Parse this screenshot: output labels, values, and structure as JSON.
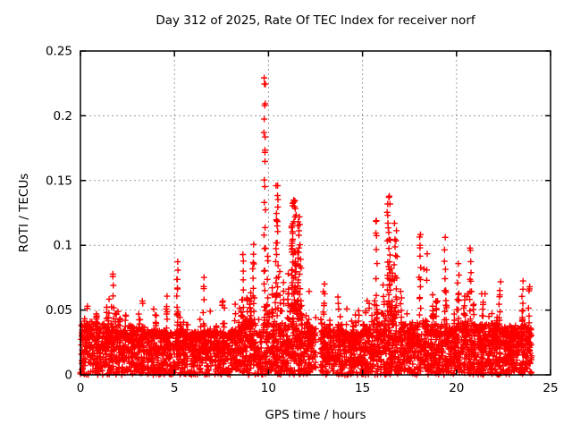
{
  "figure": {
    "background": "#ffffff",
    "border_color": "#000000",
    "grid_color": "#9c9c9c",
    "text_color": "#000000"
  },
  "chart_data": {
    "type": "scatter",
    "title": "Day 312 of 2025, Rate Of TEC Index for receiver norf",
    "xlabel": "GPS time / hours",
    "ylabel": "ROTI / TECUs",
    "xlim": [
      0,
      25
    ],
    "ylim": [
      0,
      0.25
    ],
    "xticks": [
      0,
      5,
      10,
      15,
      20,
      25
    ],
    "yticks": [
      0,
      0.05,
      0.1,
      0.15,
      0.2,
      0.25
    ],
    "xtick_labels": [
      "0",
      "5",
      "10",
      "15",
      "20",
      "25"
    ],
    "ytick_labels": [
      "0",
      "0.05",
      "0.1",
      "0.15",
      "0.2",
      "0.25"
    ],
    "grid": true,
    "grid_dash": [
      2,
      3
    ],
    "legend": null,
    "marker": {
      "shape": "plus",
      "color": "#ff0000",
      "half_size": 3.5,
      "stroke_width": 1.4
    },
    "data_range_hours": [
      0,
      24
    ],
    "data_gap_hours": [
      12.52,
      12.78
    ],
    "bin_width_hours": 0.5,
    "envelope_bins": [
      {
        "x": 0.0,
        "base": 0.04,
        "max": 0.068
      },
      {
        "x": 0.5,
        "base": 0.042,
        "max": 0.073
      },
      {
        "x": 1.0,
        "base": 0.04,
        "max": 0.065
      },
      {
        "x": 1.5,
        "base": 0.038,
        "max": 0.078
      },
      {
        "x": 2.0,
        "base": 0.035,
        "max": 0.062
      },
      {
        "x": 2.5,
        "base": 0.038,
        "max": 0.066
      },
      {
        "x": 3.0,
        "base": 0.037,
        "max": 0.065
      },
      {
        "x": 3.5,
        "base": 0.034,
        "max": 0.055
      },
      {
        "x": 4.0,
        "base": 0.034,
        "max": 0.058
      },
      {
        "x": 4.5,
        "base": 0.033,
        "max": 0.066
      },
      {
        "x": 5.0,
        "base": 0.035,
        "max": 0.072
      },
      {
        "x": 5.5,
        "base": 0.033,
        "max": 0.052
      },
      {
        "x": 6.0,
        "base": 0.033,
        "max": 0.056
      },
      {
        "x": 6.5,
        "base": 0.035,
        "max": 0.075
      },
      {
        "x": 7.0,
        "base": 0.034,
        "max": 0.058
      },
      {
        "x": 7.5,
        "base": 0.033,
        "max": 0.062
      },
      {
        "x": 8.0,
        "base": 0.036,
        "max": 0.072
      },
      {
        "x": 8.5,
        "base": 0.042,
        "max": 0.085
      },
      {
        "x": 9.0,
        "base": 0.046,
        "max": 0.09
      },
      {
        "x": 9.5,
        "base": 0.05,
        "max": 0.105
      },
      {
        "x": 10.0,
        "base": 0.052,
        "max": 0.11
      },
      {
        "x": 10.5,
        "base": 0.05,
        "max": 0.105
      },
      {
        "x": 11.0,
        "base": 0.055,
        "max": 0.115
      },
      {
        "x": 11.5,
        "base": 0.052,
        "max": 0.11
      },
      {
        "x": 12.0,
        "base": 0.04,
        "max": 0.08
      },
      {
        "x": 12.5,
        "base": 0.035,
        "max": 0.055
      },
      {
        "x": 13.0,
        "base": 0.035,
        "max": 0.063
      },
      {
        "x": 13.5,
        "base": 0.037,
        "max": 0.068
      },
      {
        "x": 14.0,
        "base": 0.033,
        "max": 0.055
      },
      {
        "x": 14.5,
        "base": 0.033,
        "max": 0.06
      },
      {
        "x": 15.0,
        "base": 0.038,
        "max": 0.07
      },
      {
        "x": 15.5,
        "base": 0.045,
        "max": 0.085
      },
      {
        "x": 16.0,
        "base": 0.05,
        "max": 0.1
      },
      {
        "x": 16.5,
        "base": 0.05,
        "max": 0.1
      },
      {
        "x": 17.0,
        "base": 0.04,
        "max": 0.095
      },
      {
        "x": 17.5,
        "base": 0.04,
        "max": 0.09
      },
      {
        "x": 18.0,
        "base": 0.042,
        "max": 0.105
      },
      {
        "x": 18.5,
        "base": 0.04,
        "max": 0.09
      },
      {
        "x": 19.0,
        "base": 0.038,
        "max": 0.08
      },
      {
        "x": 19.5,
        "base": 0.037,
        "max": 0.105
      },
      {
        "x": 20.0,
        "base": 0.04,
        "max": 0.085
      },
      {
        "x": 20.5,
        "base": 0.04,
        "max": 0.095
      },
      {
        "x": 21.0,
        "base": 0.038,
        "max": 0.083
      },
      {
        "x": 21.5,
        "base": 0.04,
        "max": 0.075
      },
      {
        "x": 22.0,
        "base": 0.04,
        "max": 0.072
      },
      {
        "x": 22.5,
        "base": 0.038,
        "max": 0.066
      },
      {
        "x": 23.0,
        "base": 0.037,
        "max": 0.066
      },
      {
        "x": 23.5,
        "base": 0.04,
        "max": 0.073
      }
    ],
    "spike_events": [
      {
        "x": 9.8,
        "top": 0.23,
        "n": 20,
        "w": 0.05
      },
      {
        "x": 10.45,
        "top": 0.148,
        "n": 24,
        "w": 0.09
      },
      {
        "x": 11.35,
        "top": 0.135,
        "n": 36,
        "w": 0.13
      },
      {
        "x": 11.65,
        "top": 0.122,
        "n": 20,
        "w": 0.09
      },
      {
        "x": 16.4,
        "top": 0.136,
        "n": 22,
        "w": 0.09
      },
      {
        "x": 16.75,
        "top": 0.118,
        "n": 12,
        "w": 0.07
      },
      {
        "x": 15.75,
        "top": 0.119,
        "n": 8,
        "w": 0.04
      },
      {
        "x": 5.15,
        "top": 0.088,
        "n": 9,
        "w": 0.04
      },
      {
        "x": 18.05,
        "top": 0.105,
        "n": 10,
        "w": 0.05
      },
      {
        "x": 9.2,
        "top": 0.1,
        "n": 10,
        "w": 0.05
      },
      {
        "x": 8.65,
        "top": 0.094,
        "n": 9,
        "w": 0.04
      },
      {
        "x": 19.4,
        "top": 0.105,
        "n": 10,
        "w": 0.06
      },
      {
        "x": 20.75,
        "top": 0.095,
        "n": 9,
        "w": 0.05
      },
      {
        "x": 12.95,
        "top": 0.07,
        "n": 6,
        "w": 0.04
      },
      {
        "x": 22.3,
        "top": 0.072,
        "n": 7,
        "w": 0.05
      },
      {
        "x": 23.5,
        "top": 0.073,
        "n": 7,
        "w": 0.04
      },
      {
        "x": 1.75,
        "top": 0.078,
        "n": 6,
        "w": 0.04
      },
      {
        "x": 6.55,
        "top": 0.075,
        "n": 6,
        "w": 0.04
      },
      {
        "x": 20.1,
        "top": 0.085,
        "n": 8,
        "w": 0.05
      }
    ],
    "density": {
      "seed": 7,
      "solid_per_bin": 55,
      "solid_top": 0.03,
      "mid_per_bin": 16,
      "mid_exp": 1.4,
      "columns_per_bin": 4,
      "column_exp": 1.9,
      "column_max_points": 7
    }
  }
}
